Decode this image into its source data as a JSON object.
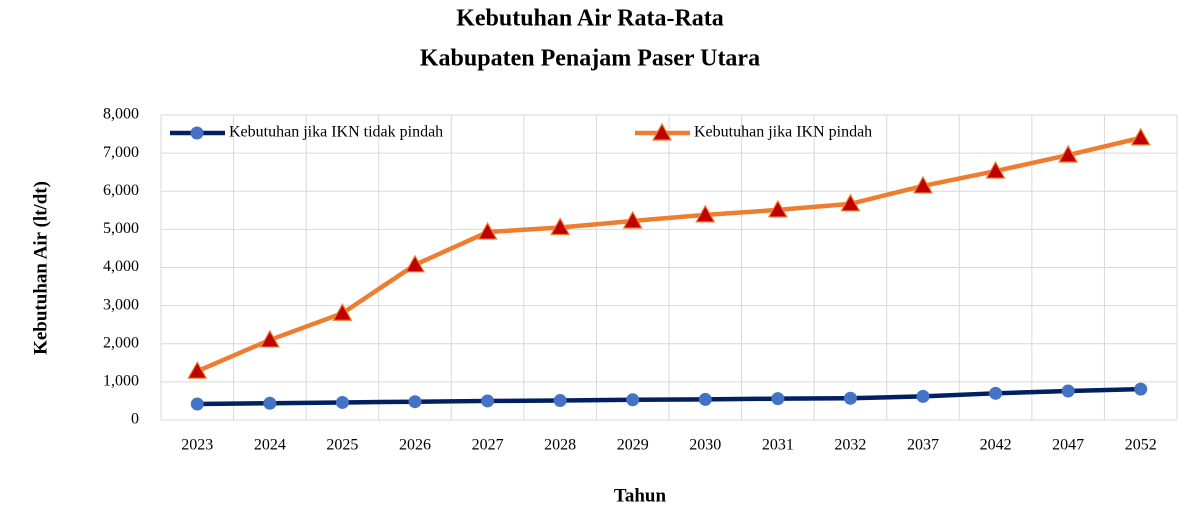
{
  "chart_data": {
    "type": "line",
    "title": "Kebutuhan Air Rata-Rata",
    "subtitle": "Kabupaten Penajam Paser Utara",
    "x_label": "Tahun",
    "y_label": "Kebutuhan Air (lt/dt)",
    "categories": [
      "2023",
      "2024",
      "2025",
      "2026",
      "2027",
      "2028",
      "2029",
      "2030",
      "2031",
      "2032",
      "2037",
      "2042",
      "2047",
      "2052"
    ],
    "series": [
      {
        "name": "Kebutuhan jika IKN tidak pindah",
        "color": "#002060",
        "marker": "circle",
        "marker_color": "#4472c4",
        "values": [
          420,
          440,
          460,
          480,
          500,
          510,
          530,
          540,
          560,
          570,
          620,
          700,
          760,
          810
        ]
      },
      {
        "name": "Kebutuhan jika IKN pindah",
        "color": "#ed7d31",
        "marker": "triangle",
        "marker_color": "#c00000",
        "values": [
          1280,
          2100,
          2800,
          4070,
          4930,
          5050,
          5220,
          5380,
          5510,
          5670,
          6140,
          6530,
          6950,
          7400
        ]
      }
    ],
    "ylim": [
      0,
      8000
    ],
    "yticks": [
      0,
      {
        "value": 1000,
        "label": "1,000"
      },
      {
        "value": 2000,
        "label": "2,000"
      },
      {
        "value": 3000,
        "label": "3,000"
      },
      {
        "value": 4000,
        "label": "4,000"
      },
      {
        "value": 5000,
        "label": "5,000"
      },
      {
        "value": 6000,
        "label": "6,000"
      },
      {
        "value": 7000,
        "label": "7,000"
      },
      {
        "value": 8000,
        "label": "8,000"
      }
    ],
    "grid": true,
    "legend": "top"
  }
}
